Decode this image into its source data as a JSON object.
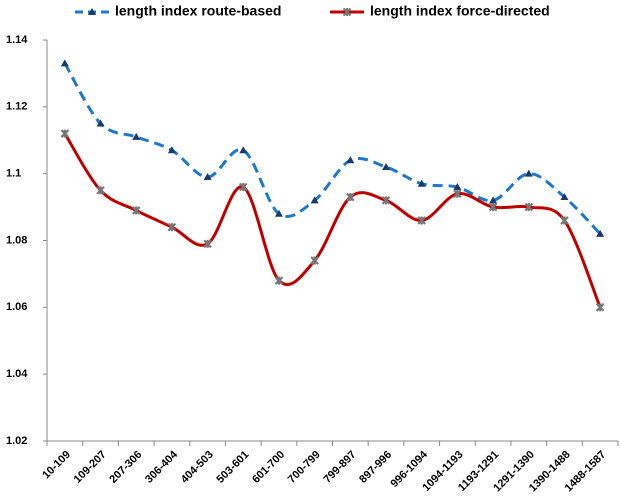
{
  "chart_data": {
    "type": "line",
    "categories": [
      "10-109",
      "109-207",
      "207-306",
      "306-404",
      "404-503",
      "503-601",
      "601-700",
      "700-799",
      "799-897",
      "897-996",
      "996-1094",
      "1094-1193",
      "1193-1291",
      "1291-1390",
      "1390-1488",
      "1488-1587"
    ],
    "series": [
      {
        "name": "length index route-based",
        "color": "#1f77c8",
        "dashed": true,
        "marker": "triangle",
        "values": [
          1.133,
          1.115,
          1.111,
          1.107,
          1.099,
          1.107,
          1.088,
          1.092,
          1.104,
          1.102,
          1.097,
          1.096,
          1.092,
          1.1,
          1.093,
          1.082
        ]
      },
      {
        "name": "length index force-directed",
        "color": "#c00000",
        "dashed": false,
        "marker": "star",
        "values": [
          1.112,
          1.095,
          1.089,
          1.084,
          1.079,
          1.096,
          1.068,
          1.074,
          1.093,
          1.092,
          1.086,
          1.094,
          1.09,
          1.09,
          1.086,
          1.06
        ]
      }
    ],
    "ylim": [
      1.02,
      1.14
    ],
    "yticks": [
      1.02,
      1.04,
      1.06,
      1.08,
      1.1,
      1.12,
      1.14
    ],
    "grid": false,
    "legend": "top"
  }
}
